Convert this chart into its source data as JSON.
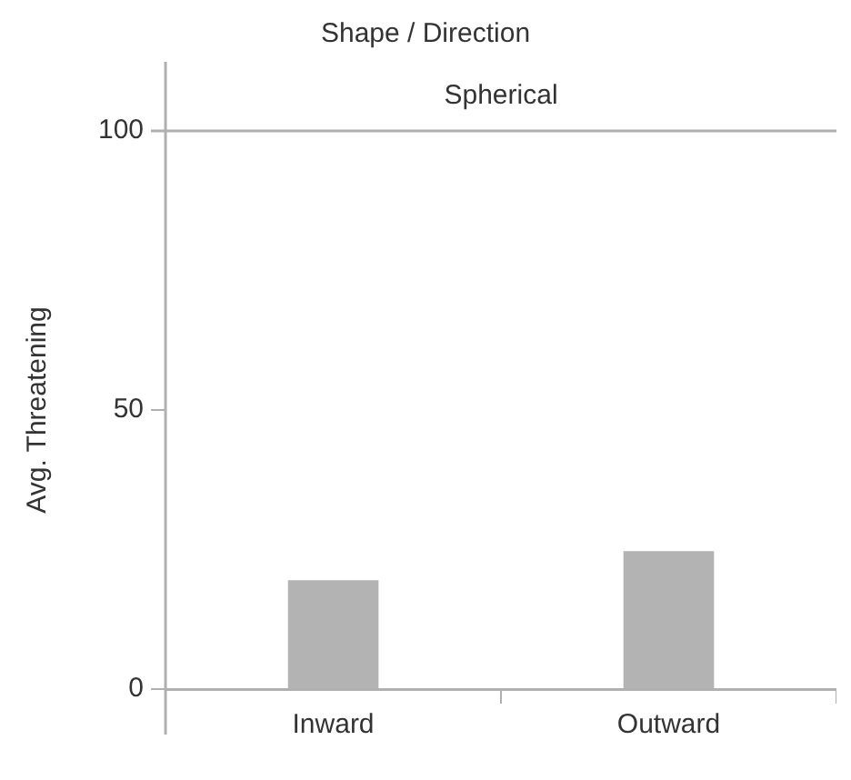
{
  "chart_data": {
    "type": "bar",
    "title": "Shape / Direction",
    "subtitle": "Spherical",
    "ylabel": "Avg. Threatening",
    "categories": [
      "Inward",
      "Outward"
    ],
    "values": [
      19.5,
      24.7
    ],
    "color": "#b3b3b3",
    "ylim": [
      0,
      100
    ],
    "yticks": [
      0,
      50,
      100
    ],
    "grid": false,
    "legend": false
  }
}
